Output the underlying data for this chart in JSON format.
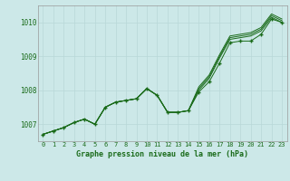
{
  "title": "Graphe pression niveau de la mer (hPa)",
  "bg_color": "#cce8e8",
  "line_color": "#1a6b1a",
  "grid_color": "#b8d8d8",
  "x_labels": [
    "0",
    "1",
    "2",
    "3",
    "4",
    "5",
    "6",
    "7",
    "8",
    "9",
    "10",
    "11",
    "12",
    "13",
    "14",
    "15",
    "16",
    "17",
    "18",
    "19",
    "20",
    "21",
    "22",
    "23"
  ],
  "ylim": [
    1006.5,
    1010.5
  ],
  "yticks": [
    1007,
    1008,
    1009,
    1010
  ],
  "series_main": [
    1006.7,
    1006.8,
    1006.9,
    1007.05,
    1007.15,
    1007.0,
    1007.5,
    1007.65,
    1007.7,
    1007.75,
    1008.05,
    1007.85,
    1007.35,
    1007.35,
    1007.4,
    1007.95,
    1008.25,
    1008.8,
    1009.4,
    1009.45,
    1009.45,
    1009.65,
    1010.1,
    1010.0
  ],
  "series_upper1": [
    1006.7,
    1006.8,
    1006.9,
    1007.05,
    1007.15,
    1007.0,
    1007.5,
    1007.65,
    1007.7,
    1007.75,
    1008.05,
    1007.85,
    1007.35,
    1007.35,
    1007.4,
    1008.0,
    1008.35,
    1008.95,
    1009.5,
    1009.55,
    1009.6,
    1009.75,
    1010.15,
    1010.0
  ],
  "series_upper2": [
    1006.7,
    1006.8,
    1006.9,
    1007.05,
    1007.15,
    1007.0,
    1007.5,
    1007.65,
    1007.7,
    1007.75,
    1008.05,
    1007.85,
    1007.35,
    1007.35,
    1007.4,
    1008.05,
    1008.4,
    1009.0,
    1009.55,
    1009.6,
    1009.65,
    1009.8,
    1010.2,
    1010.05
  ],
  "series_upper3": [
    1006.7,
    1006.8,
    1006.9,
    1007.05,
    1007.15,
    1007.0,
    1007.5,
    1007.65,
    1007.7,
    1007.75,
    1008.05,
    1007.85,
    1007.35,
    1007.35,
    1007.4,
    1008.1,
    1008.45,
    1009.05,
    1009.6,
    1009.65,
    1009.7,
    1009.85,
    1010.25,
    1010.1
  ]
}
